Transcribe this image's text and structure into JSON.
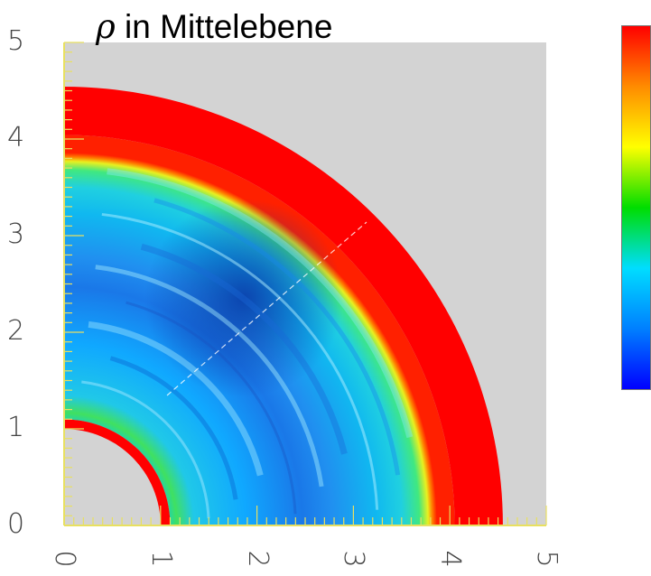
{
  "chart_data": {
    "type": "heatmap",
    "title_symbol": "ρ",
    "title_text": " in Mittelebene",
    "xlim": [
      0,
      5
    ],
    "ylim": [
      0,
      5
    ],
    "x_ticks": [
      "0",
      "1",
      "2",
      "3",
      "4",
      "5"
    ],
    "y_ticks": [
      "0",
      "1",
      "2",
      "3",
      "4",
      "5"
    ],
    "grid": false,
    "geometry": "quarter-annulus",
    "inner_boundary_ring": [
      1.0,
      1.1
    ],
    "inner_transition_ring": [
      1.1,
      1.25
    ],
    "outer_boundary_ring": [
      4.05,
      4.55
    ],
    "outer_transition_ring": [
      3.9,
      4.05
    ],
    "background_color": "#d3d3d3",
    "axis_color": "#e8e060",
    "colorbar": {
      "colors": [
        "#ff0000",
        "#ff8c00",
        "#ffff00",
        "#00dd00",
        "#00ddff",
        "#0080ff",
        "#0000ff"
      ],
      "labels": []
    }
  }
}
